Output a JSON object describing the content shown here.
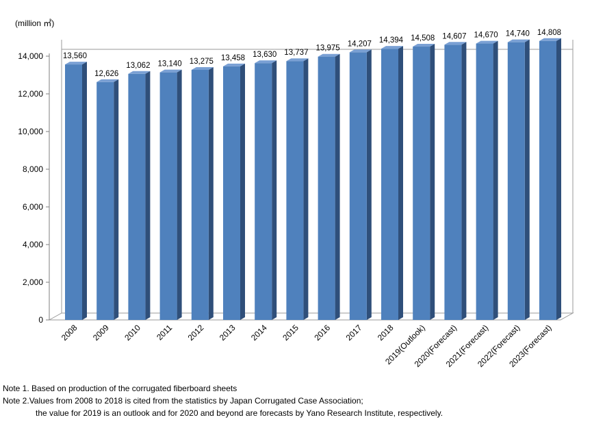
{
  "chart_data": {
    "type": "bar",
    "title": "",
    "unit_label": "(million ㎡)",
    "xlabel": "",
    "ylabel": "",
    "ylim": [
      0,
      14000
    ],
    "yticks": [
      0,
      2000,
      4000,
      6000,
      8000,
      10000,
      12000,
      14000
    ],
    "ytick_labels": [
      "0",
      "2,000",
      "4,000",
      "6,000",
      "8,000",
      "10,000",
      "12,000",
      "14,000"
    ],
    "grid": false,
    "legend": "none",
    "categories": [
      "2008",
      "2009",
      "2010",
      "2011",
      "2012",
      "2013",
      "2014",
      "2015",
      "2016",
      "2017",
      "2018",
      "2019(Outlook)",
      "2020(Forecast)",
      "2021(Forecast)",
      "2022(Forecast)",
      "2023(Forecast)"
    ],
    "values": [
      13560,
      12626,
      13062,
      13140,
      13275,
      13458,
      13630,
      13737,
      13975,
      14207,
      14394,
      14508,
      14607,
      14670,
      14740,
      14808
    ],
    "value_labels": [
      "13,560",
      "12,626",
      "13,062",
      "13,140",
      "13,275",
      "13,458",
      "13,630",
      "13,737",
      "13,975",
      "14,207",
      "14,394",
      "14,508",
      "14,607",
      "14,670",
      "14,740",
      "14,808"
    ],
    "colors": {
      "bar_front": "#4f81bd",
      "bar_side": "#2f4f7a",
      "bar_top": "#7aa0d4",
      "wall_line": "#7f7f7f"
    }
  },
  "notes": {
    "note1": "Note 1. Based on production of the corrugated fiberboard sheets",
    "note2_line1": "Note 2.Values from 2008 to 2018 is cited from the statistics by Japan Corrugated Case Association;",
    "note2_line2": "the value for 2019 is an outlook and for 2020 and beyond are forecasts by Yano Research Institute, respectively."
  }
}
